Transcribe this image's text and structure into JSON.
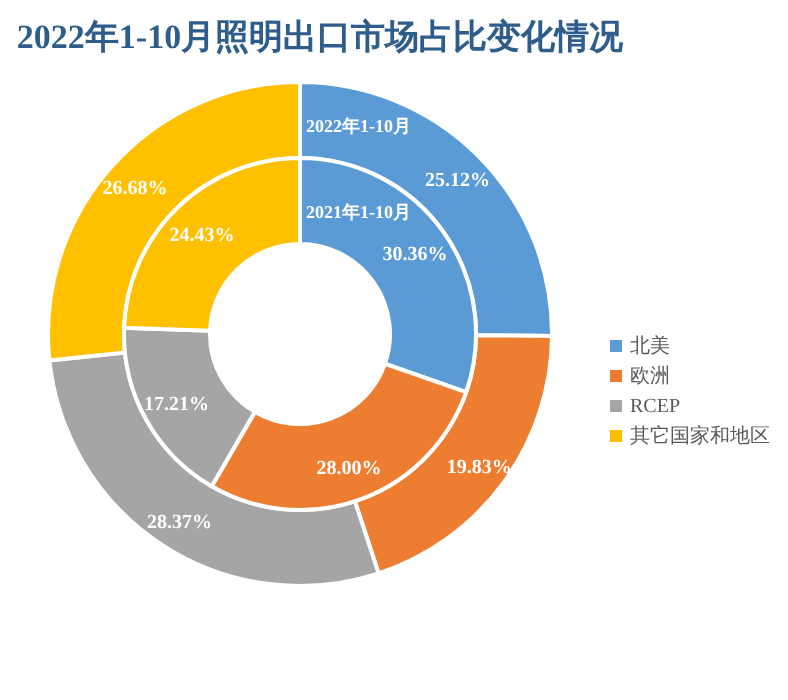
{
  "chart_data": {
    "type": "donut",
    "title": "2022年1-10月照明出口市场占比变化情况",
    "categories": [
      "北美",
      "欧洲",
      "RCEP",
      "其它国家和地区"
    ],
    "colors": [
      "#5b9bd5",
      "#ed7d31",
      "#a5a5a5",
      "#ffc000"
    ],
    "series": [
      {
        "name": "2022年1-10月",
        "values": [
          25.12,
          19.83,
          28.37,
          26.68
        ],
        "value_labels": [
          "25.12%",
          "19.83%",
          "28.37%",
          "26.68%"
        ]
      },
      {
        "name": "2021年1-10月",
        "values": [
          30.36,
          28.0,
          17.21,
          24.43
        ],
        "value_labels": [
          "30.36%",
          "28.00%",
          "17.21%",
          "24.43%"
        ]
      }
    ],
    "legend": "right"
  }
}
